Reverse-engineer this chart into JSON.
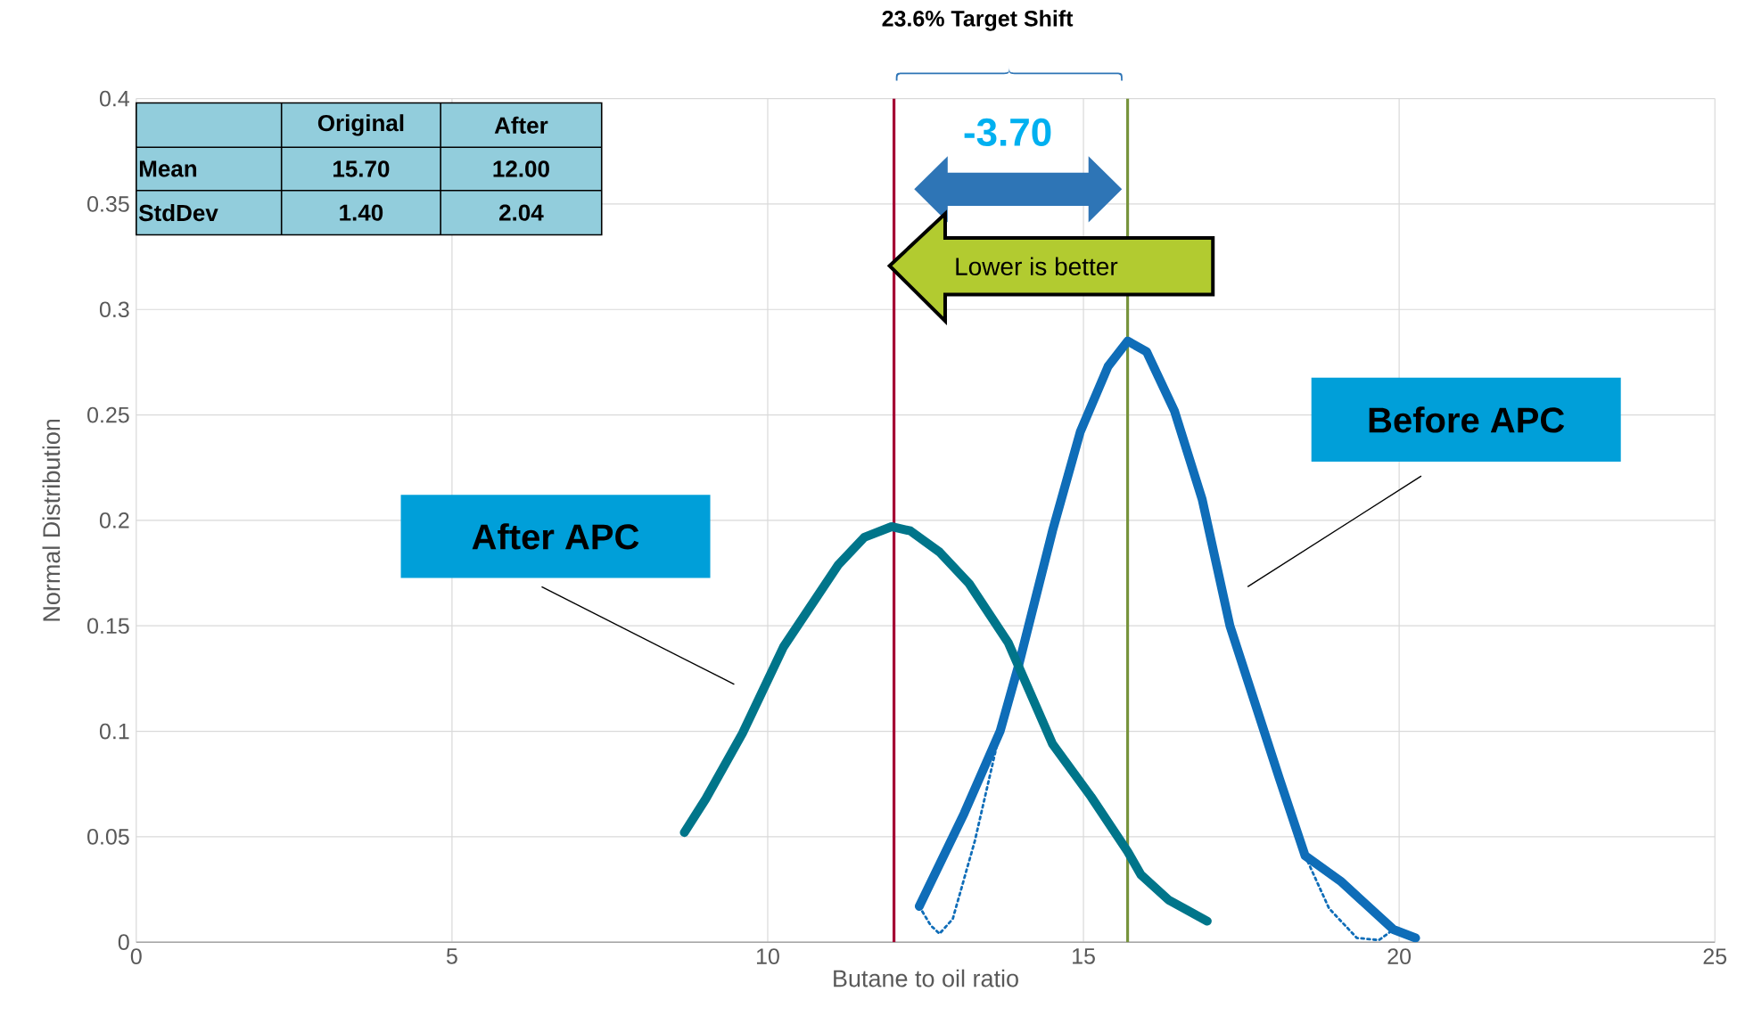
{
  "chart_data": {
    "type": "line",
    "xlabel": "Butane to oil ratio",
    "ylabel": "Normal Distribution",
    "xlim": [
      0,
      25
    ],
    "ylim": [
      0,
      0.4
    ],
    "xticks": [
      0,
      5,
      10,
      15,
      20,
      25
    ],
    "yticks": [
      0,
      0.05,
      0.1,
      0.15,
      0.2,
      0.25,
      0.3,
      0.35,
      0.4
    ],
    "grid": true,
    "series": [
      {
        "name": "Before APC",
        "color": "#0f6db8",
        "line_style": "solid",
        "x": [
          12.4,
          13.11,
          13.68,
          13.98,
          14.51,
          14.95,
          15.39,
          15.7,
          16.0,
          16.44,
          16.88,
          17.32,
          18.11,
          18.51,
          19.07,
          19.91,
          20.26
        ],
        "values": [
          0.017,
          0.061,
          0.1,
          0.132,
          0.195,
          0.242,
          0.273,
          0.285,
          0.28,
          0.252,
          0.21,
          0.15,
          0.077,
          0.041,
          0.029,
          0.006,
          0.002
        ]
      },
      {
        "name": "After APC",
        "color": "#00758a",
        "line_style": "solid",
        "x": [
          8.68,
          9.02,
          9.6,
          10.25,
          11.12,
          11.53,
          11.96,
          12.26,
          12.72,
          13.19,
          13.81,
          14.51,
          15.12,
          15.7,
          15.91,
          16.35,
          16.96
        ],
        "values": [
          0.052,
          0.068,
          0.099,
          0.14,
          0.179,
          0.192,
          0.197,
          0.195,
          0.185,
          0.17,
          0.142,
          0.094,
          0.069,
          0.043,
          0.032,
          0.02,
          0.01
        ]
      },
      {
        "color": "#0f6db8",
        "line_style": "dotted",
        "x": [
          12.4,
          12.58,
          12.72,
          12.93,
          13.28,
          13.68
        ],
        "values": [
          0.017,
          0.008,
          0.004,
          0.011,
          0.048,
          0.1
        ]
      },
      {
        "color": "#0f6db8",
        "line_style": "dotted",
        "x": [
          18.51,
          18.89,
          19.33,
          19.68,
          19.91
        ],
        "values": [
          0.041,
          0.016,
          0.002,
          0.001,
          0.006
        ]
      }
    ],
    "ref_lines": [
      {
        "axis": "x",
        "value": 12.0,
        "color": "#a50034"
      },
      {
        "axis": "x",
        "value": 15.7,
        "color": "#77933c"
      }
    ],
    "annotations": [
      "23.6% Target Shift",
      "-3.70",
      "Lower is better",
      "Original",
      "After",
      "Mean",
      "15.70",
      "12.00",
      "StdDev",
      "1.40",
      "2.04"
    ]
  }
}
